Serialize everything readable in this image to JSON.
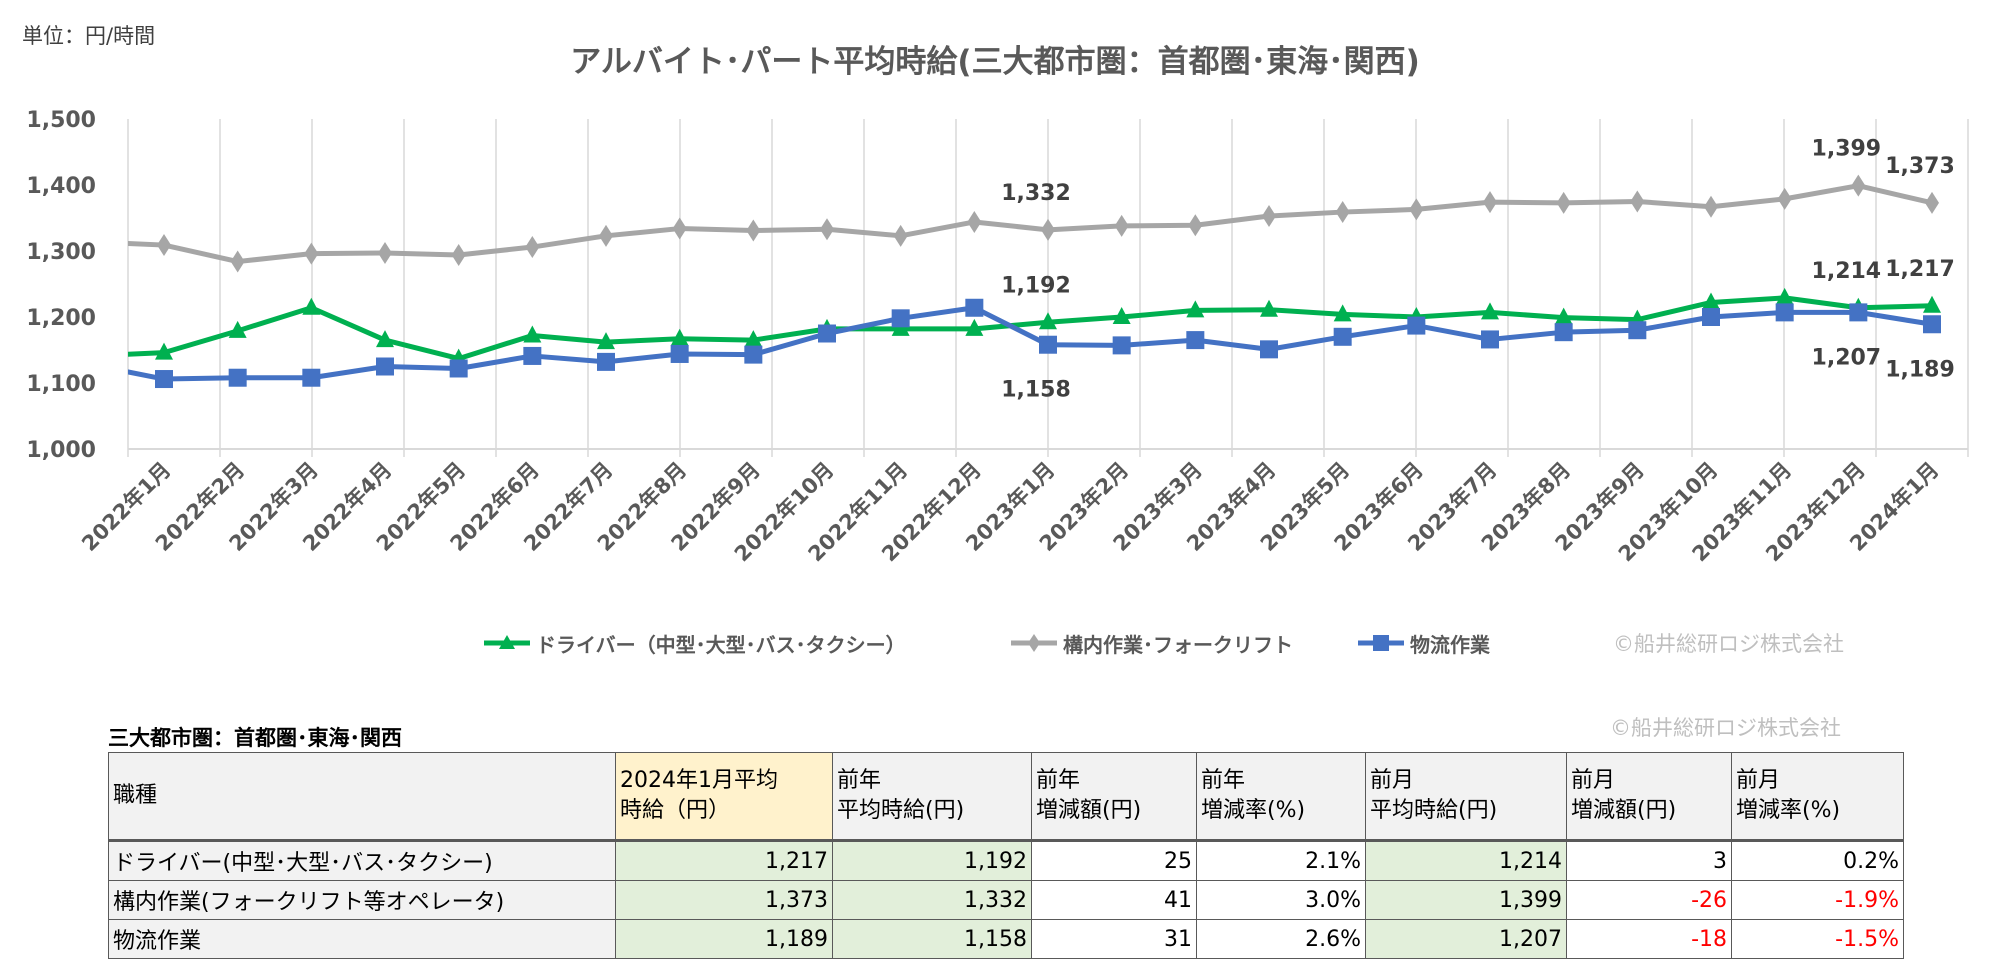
{
  "unit_label": "単位：円/時間",
  "watermark": "©船井総研ロジ株式会社",
  "chart_data": {
    "type": "line",
    "title": "アルバイト･パート平均時給(三大都市圏：首都圏･東海･関西)",
    "xlabel": "",
    "ylabel": "",
    "ylim": [
      1000,
      1500
    ],
    "yticks": [
      1000,
      1100,
      1200,
      1300,
      1400,
      1500
    ],
    "ytick_labels": [
      "1,000",
      "1,100",
      "1,200",
      "1,300",
      "1,400",
      "1,500"
    ],
    "grid": "vertical",
    "legend_position": "bottom",
    "categories": [
      "2022年1月",
      "2022年2月",
      "2022年3月",
      "2022年4月",
      "2022年5月",
      "2022年6月",
      "2022年7月",
      "2022年8月",
      "2022年9月",
      "2022年10月",
      "2022年11月",
      "2022年12月",
      "2023年1月",
      "2023年2月",
      "2023年3月",
      "2023年4月",
      "2023年5月",
      "2023年6月",
      "2023年7月",
      "2023年8月",
      "2023年9月",
      "2023年10月",
      "2023年11月",
      "2023年12月",
      "2024年1月"
    ],
    "series": [
      {
        "name": "ドライバー（中型･大型･バス･タクシー）",
        "color": "#00b050",
        "marker": "triangle",
        "clipped_prior_value": 1141,
        "values": [
          1146,
          1179,
          1214,
          1165,
          1137,
          1172,
          1162,
          1167,
          1165,
          1182,
          1182,
          1182,
          1192,
          1200,
          1210,
          1211,
          1204,
          1200,
          1207,
          1199,
          1196,
          1222,
          1229,
          1214,
          1217
        ]
      },
      {
        "name": "構内作業･フォークリフト",
        "color": "#a6a6a6",
        "marker": "diamond",
        "clipped_prior_value": 1314,
        "values": [
          1309,
          1284,
          1296,
          1297,
          1294,
          1306,
          1323,
          1334,
          1331,
          1333,
          1323,
          1344,
          1332,
          1338,
          1339,
          1353,
          1359,
          1363,
          1374,
          1373,
          1375,
          1367,
          1379,
          1399,
          1373
        ]
      },
      {
        "name": "物流作業",
        "color": "#4472c4",
        "marker": "square",
        "clipped_prior_value": 1128,
        "values": [
          1106,
          1108,
          1108,
          1125,
          1122,
          1141,
          1132,
          1144,
          1143,
          1175,
          1198,
          1214,
          1158,
          1157,
          1165,
          1151,
          1170,
          1187,
          1166,
          1177,
          1180,
          1200,
          1207,
          1207,
          1189
        ]
      }
    ],
    "data_labels": [
      {
        "series": 1,
        "index": 12,
        "text": "1,332",
        "position": "above"
      },
      {
        "series": 0,
        "index": 12,
        "text": "1,192",
        "position": "above"
      },
      {
        "series": 2,
        "index": 12,
        "text": "1,158",
        "position": "below"
      },
      {
        "series": 1,
        "index": 23,
        "text": "1,399",
        "position": "above"
      },
      {
        "series": 0,
        "index": 23,
        "text": "1,214",
        "position": "above"
      },
      {
        "series": 2,
        "index": 23,
        "text": "1,207",
        "position": "below"
      },
      {
        "series": 1,
        "index": 24,
        "text": "1,373",
        "position": "above"
      },
      {
        "series": 0,
        "index": 24,
        "text": "1,217",
        "position": "above"
      },
      {
        "series": 2,
        "index": 24,
        "text": "1,189",
        "position": "below"
      }
    ]
  },
  "table": {
    "title": "三大都市圏：首都圏･東海･関西",
    "headers": [
      [
        "職種"
      ],
      [
        "2024年1月平均",
        "時給（円）"
      ],
      [
        "前年",
        "平均時給(円)"
      ],
      [
        "前年",
        "増減額(円)"
      ],
      [
        "前年",
        "増減率(%)"
      ],
      [
        "前月",
        "平均時給(円)"
      ],
      [
        "前月",
        "増減額(円)"
      ],
      [
        "前月",
        "増減率(%)"
      ]
    ],
    "rows": [
      [
        "ドライバー(中型･大型･バス･タクシー)",
        "1,217",
        "1,192",
        "25",
        "2.1%",
        "1,214",
        "3",
        "0.2%"
      ],
      [
        "構内作業(フォークリフト等オペレータ)",
        "1,373",
        "1,332",
        "41",
        "3.0%",
        "1,399",
        "-26",
        "-1.9%"
      ],
      [
        "物流作業",
        "1,189",
        "1,158",
        "31",
        "2.6%",
        "1,207",
        "-18",
        "-1.5%"
      ]
    ],
    "negative_color": "#ff0000",
    "highlight_header_color": "#fff2cc",
    "highlight_cell_color": "#e2efda"
  }
}
